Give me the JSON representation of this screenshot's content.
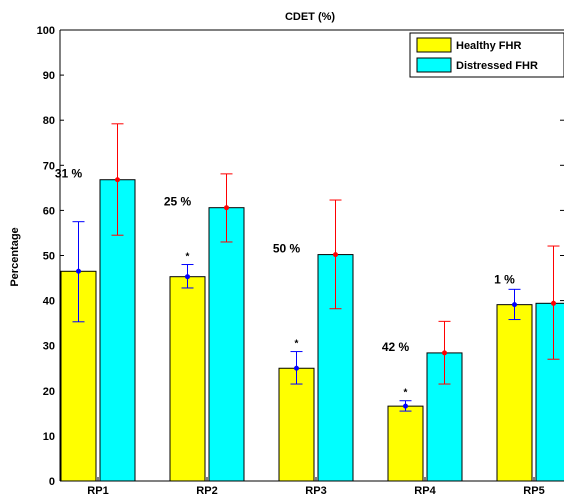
{
  "chart_data": {
    "type": "bar",
    "title": "CDET (%)",
    "xlabel": "",
    "ylabel": "Percentage",
    "ylim": [
      0,
      100
    ],
    "yticks": [
      0,
      10,
      20,
      30,
      40,
      50,
      60,
      70,
      80,
      90,
      100
    ],
    "categories": [
      "RP1",
      "RP2",
      "RP3",
      "RP4",
      "RP5"
    ],
    "series": [
      {
        "name": "Healthy FHR",
        "color": "#ffff00",
        "values": [
          46.5,
          45.3,
          25.0,
          16.6,
          39.1
        ],
        "error_low": [
          35.3,
          42.8,
          21.5,
          15.5,
          35.8
        ],
        "error_high": [
          57.5,
          48.0,
          28.7,
          17.8,
          42.5
        ],
        "marker_color": "#0000ff"
      },
      {
        "name": "Distressed FHR",
        "color": "#00ffff",
        "values": [
          66.8,
          60.6,
          50.2,
          28.4,
          39.4
        ],
        "error_low": [
          54.5,
          53.0,
          38.2,
          21.5,
          27.0
        ],
        "error_high": [
          79.2,
          68.1,
          62.3,
          35.4,
          52.1
        ],
        "marker_color": "#ff0000"
      }
    ],
    "annotations": [
      "31 %",
      "25 %",
      "50 %",
      "42 %",
      "1 %"
    ],
    "significance_markers": [
      "",
      "*",
      "*",
      "*",
      ""
    ],
    "legend": {
      "position": "top-right"
    },
    "grid": false
  }
}
